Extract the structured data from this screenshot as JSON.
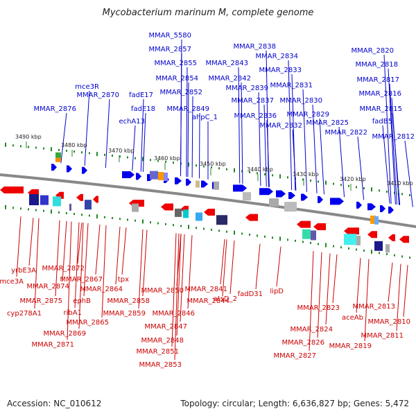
{
  "title": "Mycobacterium marinum M, complete genome",
  "footer": {
    "accession": "Accession: NC_010612",
    "topology": "Topology: circular; Length: 6,636,827 bp; Genes: 5,472"
  },
  "colors": {
    "forward_gene": "#0000ee",
    "reverse_gene": "#ee0000",
    "backbone": "#888888",
    "tick": "#228822",
    "top_label": "#0000cc",
    "bottom_label": "#cc0000"
  },
  "kbp_ticks": [
    "3490 kbp",
    "3480 kbp",
    "3470 kbp",
    "3460 kbp",
    "3450 kbp",
    "3440 kbp",
    "3430 kbp",
    "3420 kbp",
    "3410 kbp"
  ],
  "top_labels": [
    "MMAR_5580",
    "MMAR_2857",
    "MMAR_2855",
    "MMAR_2854",
    "MMAR_2852",
    "MMAR_2849",
    "ahpC_1",
    "MMAR_2843",
    "MMAR_2842",
    "MMAR_2838",
    "MMAR_2834",
    "MMAR_2833",
    "MMAR_2839",
    "MMAR_2831",
    "MMAR_2837",
    "MMAR_2836",
    "MMAR_2830",
    "MMAR_2829",
    "MMAR_2832",
    "MMAR_2825",
    "MMAR_2822",
    "MMAR_2820",
    "MMAR_2818",
    "MMAR_2817",
    "MMAR_2816",
    "MMAR_2815",
    "fadB5",
    "MMAR_2812",
    "mce3R",
    "MMAR_2870",
    "MMAR_2876",
    "fadE17",
    "fadE18",
    "echA13"
  ],
  "bottom_labels": [
    "yrbE3A",
    "mce3A",
    "MMAR_2872",
    "MMAR_2874",
    "MMAR_2875",
    "MMAR_2867",
    "ephB",
    "cyp278A1",
    "ribA1",
    "MMAR_2864",
    "MMAR_2865",
    "MMAR_2869",
    "MMAR_2871",
    "tpx",
    "MMAR_2858",
    "MMAR_2859",
    "MMAR_2850",
    "MMAR_2846",
    "MMAR_2847",
    "MMAR_2848",
    "MMAR_2851",
    "MMAR_2853",
    "MMAR_2841",
    "MMAR_2844",
    "atsD_2",
    "fadD31",
    "lipD",
    "MMAR_2823",
    "MMAR_2824",
    "MMAR_2826",
    "MMAR_2827",
    "aceAb",
    "MMAR_2819",
    "MMAR_2813",
    "MMAR_2810",
    "MMAR_2811"
  ]
}
